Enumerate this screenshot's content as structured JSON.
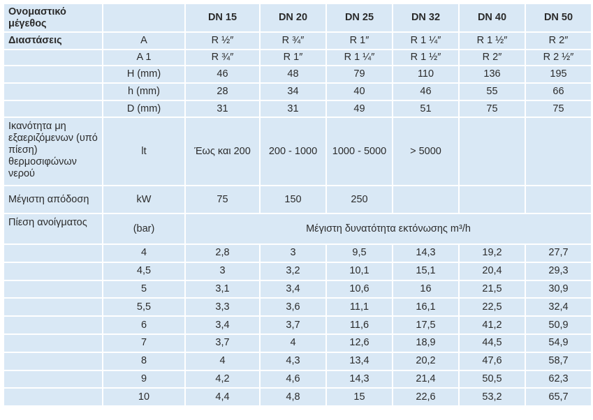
{
  "header": {
    "label": "Ονομαστικό μέγεθος",
    "columns": [
      "DN 15",
      "DN 20",
      "DN 25",
      "DN 32",
      "DN 40",
      "DN 50"
    ]
  },
  "dimensions": {
    "label": "Διαστάσεις",
    "rows": [
      {
        "unit": "A",
        "values": [
          "R ½″",
          "R ¾″",
          "R 1″",
          "R 1 ¼″",
          "R 1 ½″",
          "R 2″"
        ]
      },
      {
        "unit": "A 1",
        "values": [
          "R ¾″",
          "R 1″",
          "R 1 ¼″",
          "R 1 ½″",
          "R 2″",
          "R 2 ½″"
        ]
      },
      {
        "unit": "H (mm)",
        "values": [
          "46",
          "48",
          "79",
          "110",
          "136",
          "195"
        ]
      },
      {
        "unit": "h (mm)",
        "values": [
          "28",
          "34",
          "40",
          "46",
          "55",
          "66"
        ]
      },
      {
        "unit": "D (mm)",
        "values": [
          "31",
          "31",
          "49",
          "51",
          "75",
          "75"
        ]
      }
    ]
  },
  "capacity": {
    "label": "Ικανότητα μη εξαεριζόμενων (υπό πίεση) θερμοσιφώνων νερού",
    "unit": "lt",
    "values": [
      "Έως και 200",
      "200 - 1000",
      "1000 - 5000",
      "> 5000"
    ]
  },
  "power": {
    "label": "Μέγιστη απόδοση",
    "unit": "kW",
    "values": [
      "75",
      "150",
      "250"
    ]
  },
  "pressure": {
    "label": "Πίεση ανοίγματος",
    "unit": "(bar)",
    "caption": "Μέγιστη δυνατότητα εκτόνωσης m³/h",
    "rows": [
      {
        "bar": "4",
        "values": [
          "2,8",
          "3",
          "9,5",
          "14,3",
          "19,2",
          "27,7"
        ]
      },
      {
        "bar": "4,5",
        "values": [
          "3",
          "3,2",
          "10,1",
          "15,1",
          "20,4",
          "29,3"
        ]
      },
      {
        "bar": "5",
        "values": [
          "3,1",
          "3,4",
          "10,6",
          "16",
          "21,5",
          "30,9"
        ]
      },
      {
        "bar": "5,5",
        "values": [
          "3,3",
          "3,6",
          "11,1",
          "16,1",
          "22,5",
          "32,4"
        ]
      },
      {
        "bar": "6",
        "values": [
          "3,4",
          "3,7",
          "11,6",
          "17,5",
          "41,2",
          "50,9"
        ]
      },
      {
        "bar": "7",
        "values": [
          "3,7",
          "4",
          "12,6",
          "18,9",
          "44,5",
          "54,9"
        ]
      },
      {
        "bar": "8",
        "values": [
          "4",
          "4,3",
          "13,4",
          "20,2",
          "47,6",
          "58,7"
        ]
      },
      {
        "bar": "9",
        "values": [
          "4,2",
          "4,6",
          "14,3",
          "21,4",
          "50,5",
          "62,3"
        ]
      },
      {
        "bar": "10",
        "values": [
          "4,4",
          "4,8",
          "15",
          "22,6",
          "53,2",
          "65,7"
        ]
      }
    ]
  }
}
